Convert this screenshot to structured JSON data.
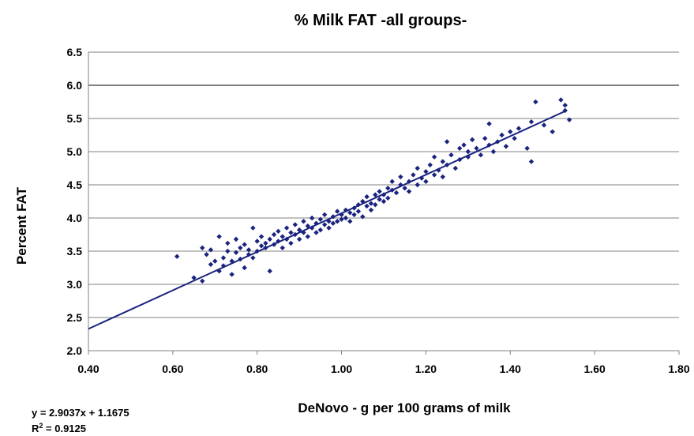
{
  "chart_data": {
    "type": "scatter",
    "title": "% Milk FAT -all groups-",
    "xlabel": "DeNovo  - g per 100 grams of milk",
    "ylabel": "Percent FAT",
    "xlim": [
      0.4,
      1.8
    ],
    "ylim": [
      2.0,
      6.5
    ],
    "x_ticks": [
      "0.40",
      "0.60",
      "0.80",
      "1.00",
      "1.20",
      "1.40",
      "1.60",
      "1.80"
    ],
    "y_ticks": [
      "2.0",
      "2.5",
      "3.0",
      "3.5",
      "4.0",
      "4.5",
      "5.0",
      "5.5",
      "6.0",
      "6.5"
    ],
    "grid": "horizontal",
    "marker_color": "#1a237e",
    "trendline": {
      "type": "linear",
      "slope": 2.9037,
      "intercept": 1.1675,
      "x_range": [
        0.4,
        1.53
      ],
      "equation": "y = 2.9037x + 1.1675",
      "r2_prefix": "R",
      "r2_sup": "2",
      "r2_value": " = 0.9125"
    },
    "points": [
      [
        0.61,
        3.42
      ],
      [
        0.65,
        3.1
      ],
      [
        0.67,
        3.05
      ],
      [
        0.67,
        3.55
      ],
      [
        0.68,
        3.45
      ],
      [
        0.69,
        3.3
      ],
      [
        0.69,
        3.52
      ],
      [
        0.7,
        3.35
      ],
      [
        0.71,
        3.72
      ],
      [
        0.71,
        3.2
      ],
      [
        0.72,
        3.4
      ],
      [
        0.72,
        3.28
      ],
      [
        0.73,
        3.62
      ],
      [
        0.73,
        3.5
      ],
      [
        0.74,
        3.35
      ],
      [
        0.74,
        3.15
      ],
      [
        0.75,
        3.48
      ],
      [
        0.75,
        3.68
      ],
      [
        0.76,
        3.55
      ],
      [
        0.76,
        3.38
      ],
      [
        0.77,
        3.6
      ],
      [
        0.77,
        3.25
      ],
      [
        0.78,
        3.52
      ],
      [
        0.78,
        3.45
      ],
      [
        0.79,
        3.85
      ],
      [
        0.79,
        3.4
      ],
      [
        0.8,
        3.65
      ],
      [
        0.8,
        3.5
      ],
      [
        0.81,
        3.58
      ],
      [
        0.81,
        3.72
      ],
      [
        0.82,
        3.55
      ],
      [
        0.82,
        3.62
      ],
      [
        0.83,
        3.68
      ],
      [
        0.83,
        3.2
      ],
      [
        0.84,
        3.75
      ],
      [
        0.84,
        3.6
      ],
      [
        0.85,
        3.8
      ],
      [
        0.85,
        3.65
      ],
      [
        0.86,
        3.72
      ],
      [
        0.86,
        3.55
      ],
      [
        0.87,
        3.85
      ],
      [
        0.87,
        3.68
      ],
      [
        0.88,
        3.78
      ],
      [
        0.88,
        3.62
      ],
      [
        0.89,
        3.9
      ],
      [
        0.89,
        3.75
      ],
      [
        0.9,
        3.82
      ],
      [
        0.9,
        3.68
      ],
      [
        0.91,
        3.95
      ],
      [
        0.91,
        3.78
      ],
      [
        0.92,
        3.88
      ],
      [
        0.92,
        3.72
      ],
      [
        0.93,
        4.0
      ],
      [
        0.93,
        3.85
      ],
      [
        0.94,
        3.92
      ],
      [
        0.94,
        3.78
      ],
      [
        0.95,
        3.98
      ],
      [
        0.95,
        3.82
      ],
      [
        0.96,
        3.9
      ],
      [
        0.96,
        4.05
      ],
      [
        0.97,
        3.95
      ],
      [
        0.97,
        3.85
      ],
      [
        0.98,
        4.02
      ],
      [
        0.98,
        3.92
      ],
      [
        0.99,
        4.1
      ],
      [
        0.99,
        3.95
      ],
      [
        1.0,
        4.05
      ],
      [
        1.0,
        3.98
      ],
      [
        1.01,
        4.12
      ],
      [
        1.01,
        4.0
      ],
      [
        1.02,
        4.08
      ],
      [
        1.02,
        3.95
      ],
      [
        1.03,
        4.15
      ],
      [
        1.03,
        4.05
      ],
      [
        1.04,
        4.2
      ],
      [
        1.04,
        4.1
      ],
      [
        1.05,
        4.25
      ],
      [
        1.05,
        4.02
      ],
      [
        1.06,
        4.18
      ],
      [
        1.06,
        4.32
      ],
      [
        1.07,
        4.22
      ],
      [
        1.07,
        4.12
      ],
      [
        1.08,
        4.35
      ],
      [
        1.08,
        4.2
      ],
      [
        1.09,
        4.28
      ],
      [
        1.09,
        4.4
      ],
      [
        1.1,
        4.35
      ],
      [
        1.1,
        4.25
      ],
      [
        1.11,
        4.45
      ],
      [
        1.11,
        4.3
      ],
      [
        1.12,
        4.42
      ],
      [
        1.12,
        4.55
      ],
      [
        1.13,
        4.38
      ],
      [
        1.14,
        4.5
      ],
      [
        1.14,
        4.62
      ],
      [
        1.15,
        4.45
      ],
      [
        1.16,
        4.55
      ],
      [
        1.16,
        4.4
      ],
      [
        1.17,
        4.65
      ],
      [
        1.18,
        4.5
      ],
      [
        1.18,
        4.75
      ],
      [
        1.19,
        4.6
      ],
      [
        1.2,
        4.7
      ],
      [
        1.2,
        4.55
      ],
      [
        1.21,
        4.8
      ],
      [
        1.22,
        4.65
      ],
      [
        1.22,
        4.92
      ],
      [
        1.23,
        4.72
      ],
      [
        1.24,
        4.85
      ],
      [
        1.24,
        4.62
      ],
      [
        1.25,
        5.15
      ],
      [
        1.25,
        4.8
      ],
      [
        1.26,
        4.95
      ],
      [
        1.27,
        4.75
      ],
      [
        1.28,
        5.05
      ],
      [
        1.28,
        4.88
      ],
      [
        1.29,
        5.1
      ],
      [
        1.3,
        4.92
      ],
      [
        1.3,
        5.0
      ],
      [
        1.31,
        5.18
      ],
      [
        1.32,
        5.05
      ],
      [
        1.33,
        4.95
      ],
      [
        1.34,
        5.2
      ],
      [
        1.35,
        5.1
      ],
      [
        1.35,
        5.42
      ],
      [
        1.36,
        5.0
      ],
      [
        1.37,
        5.15
      ],
      [
        1.38,
        5.25
      ],
      [
        1.39,
        5.08
      ],
      [
        1.4,
        5.3
      ],
      [
        1.41,
        5.2
      ],
      [
        1.42,
        5.35
      ],
      [
        1.44,
        5.05
      ],
      [
        1.45,
        4.85
      ],
      [
        1.45,
        5.45
      ],
      [
        1.46,
        5.75
      ],
      [
        1.48,
        5.4
      ],
      [
        1.5,
        5.3
      ],
      [
        1.52,
        5.78
      ],
      [
        1.53,
        5.62
      ],
      [
        1.53,
        5.7
      ],
      [
        1.54,
        5.48
      ]
    ]
  }
}
